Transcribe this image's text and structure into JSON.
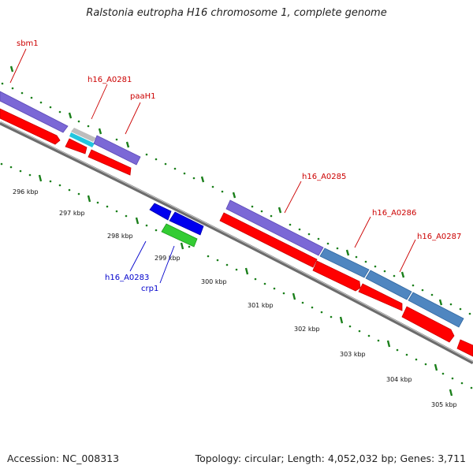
{
  "title": "Ralstonia eutropha H16 chromosome 1, complete genome",
  "footer": {
    "accession": "Accession: NC_008313",
    "summary": "Topology: circular; Length: 4,052,032 bp; Genes: 3,711"
  },
  "map": {
    "scale_labels": [
      "296 kbp",
      "297 kbp",
      "298 kbp",
      "299 kbp",
      "300 kbp",
      "301 kbp",
      "302 kbp",
      "303 kbp",
      "304 kbp",
      "305 kbp"
    ],
    "gene_labels": {
      "sbm1": "sbm1",
      "h16_A0281": "h16_A0281",
      "paaH1": "paaH1",
      "h16_A0285": "h16_A0285",
      "h16_A0286": "h16_A0286",
      "h16_A0287": "h16_A0287",
      "h16_A0283": "h16_A0283",
      "crp1": "crp1"
    },
    "colors": {
      "backbone": "#8a8a8a",
      "cds": "#ff0000",
      "gene_purple": "#7b68d6",
      "gene_steelblue": "#4f86c0",
      "gene_cyan": "#22c6df",
      "gene_grey": "#bdbdbd",
      "gene_blue": "#0000ee",
      "gene_green": "#33cc33",
      "ticks": "#1a7f1a",
      "label_red": "#cc0000",
      "label_blue": "#0000cc"
    }
  }
}
